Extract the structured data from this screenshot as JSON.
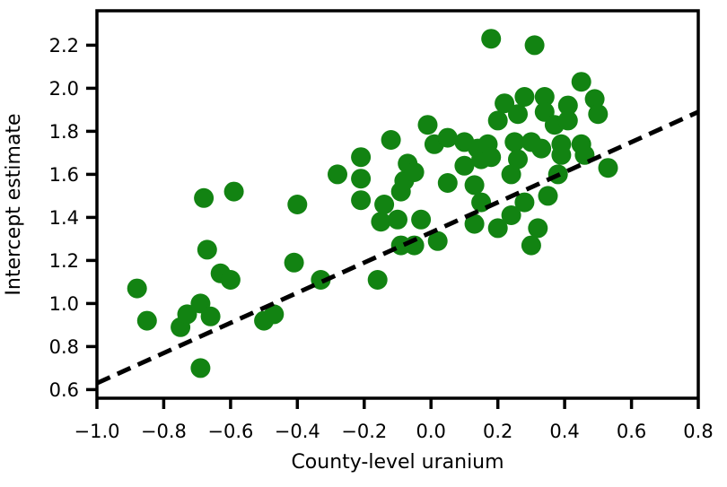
{
  "figure": {
    "background": "#ffffff"
  },
  "chart_data": {
    "type": "scatter",
    "title": "",
    "xlabel": "County-level uranium",
    "ylabel": "Intercept estimate",
    "xlim": [
      -1.0,
      0.8
    ],
    "ylim": [
      0.56,
      2.36
    ],
    "x_ticks": [
      -1.0,
      -0.8,
      -0.6,
      -0.4,
      -0.2,
      0.0,
      0.2,
      0.4,
      0.6,
      0.8
    ],
    "y_ticks": [
      0.6,
      0.8,
      1.0,
      1.2,
      1.4,
      1.6,
      1.8,
      2.0,
      2.2
    ],
    "grid": false,
    "legend_position": "none",
    "axis_color": "#000000",
    "marker_color": "#128312",
    "marker_diameter_px": 22,
    "series": [
      {
        "name": "county-intercept-estimates",
        "type": "scatter",
        "color": "#128312",
        "points": [
          [
            -0.88,
            1.07
          ],
          [
            -0.85,
            0.92
          ],
          [
            -0.75,
            0.89
          ],
          [
            -0.73,
            0.95
          ],
          [
            -0.69,
            1.0
          ],
          [
            -0.69,
            0.7
          ],
          [
            -0.68,
            1.49
          ],
          [
            -0.67,
            1.25
          ],
          [
            -0.66,
            0.94
          ],
          [
            -0.63,
            1.14
          ],
          [
            -0.6,
            1.11
          ],
          [
            -0.59,
            1.52
          ],
          [
            -0.5,
            0.92
          ],
          [
            -0.47,
            0.95
          ],
          [
            -0.41,
            1.19
          ],
          [
            -0.4,
            1.46
          ],
          [
            -0.33,
            1.11
          ],
          [
            -0.28,
            1.6
          ],
          [
            -0.21,
            1.68
          ],
          [
            -0.21,
            1.58
          ],
          [
            -0.21,
            1.48
          ],
          [
            -0.16,
            1.11
          ],
          [
            -0.15,
            1.38
          ],
          [
            -0.14,
            1.46
          ],
          [
            -0.12,
            1.76
          ],
          [
            -0.1,
            1.39
          ],
          [
            -0.09,
            1.52
          ],
          [
            -0.09,
            1.27
          ],
          [
            -0.08,
            1.57
          ],
          [
            -0.07,
            1.65
          ],
          [
            -0.05,
            1.61
          ],
          [
            -0.05,
            1.27
          ],
          [
            -0.03,
            1.39
          ],
          [
            -0.01,
            1.83
          ],
          [
            0.01,
            1.74
          ],
          [
            0.02,
            1.29
          ],
          [
            0.05,
            1.77
          ],
          [
            0.05,
            1.56
          ],
          [
            0.1,
            1.75
          ],
          [
            0.1,
            1.64
          ],
          [
            0.13,
            1.55
          ],
          [
            0.13,
            1.37
          ],
          [
            0.14,
            1.72
          ],
          [
            0.15,
            1.67
          ],
          [
            0.15,
            1.47
          ],
          [
            0.17,
            1.74
          ],
          [
            0.18,
            2.23
          ],
          [
            0.18,
            1.68
          ],
          [
            0.2,
            1.85
          ],
          [
            0.2,
            1.35
          ],
          [
            0.22,
            1.93
          ],
          [
            0.24,
            1.6
          ],
          [
            0.24,
            1.41
          ],
          [
            0.25,
            1.75
          ],
          [
            0.26,
            1.88
          ],
          [
            0.26,
            1.67
          ],
          [
            0.28,
            1.96
          ],
          [
            0.28,
            1.47
          ],
          [
            0.3,
            1.75
          ],
          [
            0.3,
            1.27
          ],
          [
            0.31,
            2.2
          ],
          [
            0.32,
            1.35
          ],
          [
            0.33,
            1.72
          ],
          [
            0.34,
            1.96
          ],
          [
            0.34,
            1.89
          ],
          [
            0.35,
            1.5
          ],
          [
            0.37,
            1.83
          ],
          [
            0.38,
            1.6
          ],
          [
            0.39,
            1.74
          ],
          [
            0.39,
            1.69
          ],
          [
            0.41,
            1.92
          ],
          [
            0.41,
            1.85
          ],
          [
            0.45,
            2.03
          ],
          [
            0.45,
            1.74
          ],
          [
            0.46,
            1.69
          ],
          [
            0.49,
            1.95
          ],
          [
            0.5,
            1.88
          ],
          [
            0.53,
            1.63
          ]
        ]
      },
      {
        "name": "regression-line",
        "type": "line",
        "style": "dashed",
        "color": "#000000",
        "x": [
          -1.0,
          0.8
        ],
        "y": [
          0.63,
          1.89
        ]
      }
    ]
  }
}
